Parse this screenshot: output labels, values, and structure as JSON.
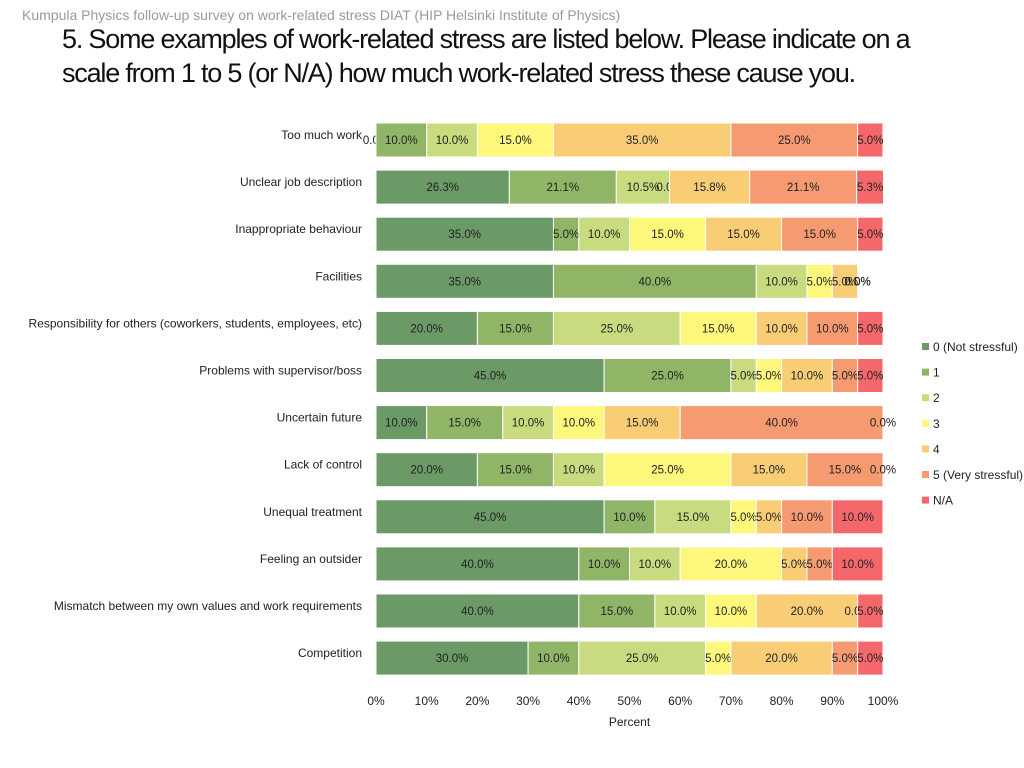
{
  "header": {
    "subtitle": "Kumpula Physics follow-up survey on work-related stress DIAT (HIP  Helsinki Institute of Physics)",
    "title_line1": "5. Some examples of work-related stress are listed below. Please indicate on a",
    "title_line2": "scale from 1 to 5 (or N/A) how much work-related stress these cause you."
  },
  "chart_data": {
    "type": "bar",
    "orientation": "horizontal",
    "stacked": "percent",
    "title": "5. Some examples of work-related stress are listed below. Please indicate on a scale from 1 to 5 (or N/A) how much work-related stress these cause you.",
    "xlabel": "Percent",
    "ylabel": "",
    "xlim": [
      0,
      100
    ],
    "x_ticks": [
      "0%",
      "10%",
      "20%",
      "30%",
      "40%",
      "50%",
      "60%",
      "70%",
      "80%",
      "90%",
      "100%"
    ],
    "legend_position": "right",
    "categories": [
      "Too much work",
      "Unclear job description",
      "Inappropriate behaviour",
      "Facilities",
      "Responsibility for others (coworkers, students, employees, etc)",
      "Problems with supervisor/boss",
      "Uncertain future",
      "Lack of control",
      "Unequal treatment",
      "Feeling an outsider",
      "Mismatch between my own values and work requirements",
      "Competition"
    ],
    "series": [
      {
        "name": "0 (Not stressful)",
        "color": "#6b9a66",
        "values": [
          0.0,
          26.3,
          35.0,
          35.0,
          20.0,
          45.0,
          10.0,
          20.0,
          45.0,
          40.0,
          40.0,
          30.0
        ]
      },
      {
        "name": "1",
        "color": "#91b567",
        "values": [
          10.0,
          21.1,
          5.0,
          40.0,
          15.0,
          25.0,
          15.0,
          15.0,
          10.0,
          10.0,
          15.0,
          10.0
        ]
      },
      {
        "name": "2",
        "color": "#c8dc7f",
        "values": [
          10.0,
          10.5,
          10.0,
          10.0,
          25.0,
          5.0,
          10.0,
          10.0,
          15.0,
          10.0,
          10.0,
          25.0
        ]
      },
      {
        "name": "3",
        "color": "#fdf77c",
        "values": [
          15.0,
          0.0,
          15.0,
          5.0,
          15.0,
          5.0,
          10.0,
          25.0,
          5.0,
          20.0,
          10.0,
          5.0
        ]
      },
      {
        "name": "4",
        "color": "#f8cd76",
        "values": [
          35.0,
          15.8,
          15.0,
          5.0,
          10.0,
          10.0,
          15.0,
          15.0,
          5.0,
          5.0,
          20.0,
          20.0
        ]
      },
      {
        "name": "5 (Very stressful)",
        "color": "#f69a72",
        "values": [
          25.0,
          21.1,
          15.0,
          0.0,
          10.0,
          5.0,
          40.0,
          15.0,
          10.0,
          5.0,
          0.0,
          5.0
        ]
      },
      {
        "name": "N/A",
        "color": "#f4686c",
        "values": [
          5.0,
          5.3,
          5.0,
          0.0,
          5.0,
          5.0,
          0.0,
          0.0,
          10.0,
          10.0,
          5.0,
          5.0
        ]
      }
    ]
  }
}
